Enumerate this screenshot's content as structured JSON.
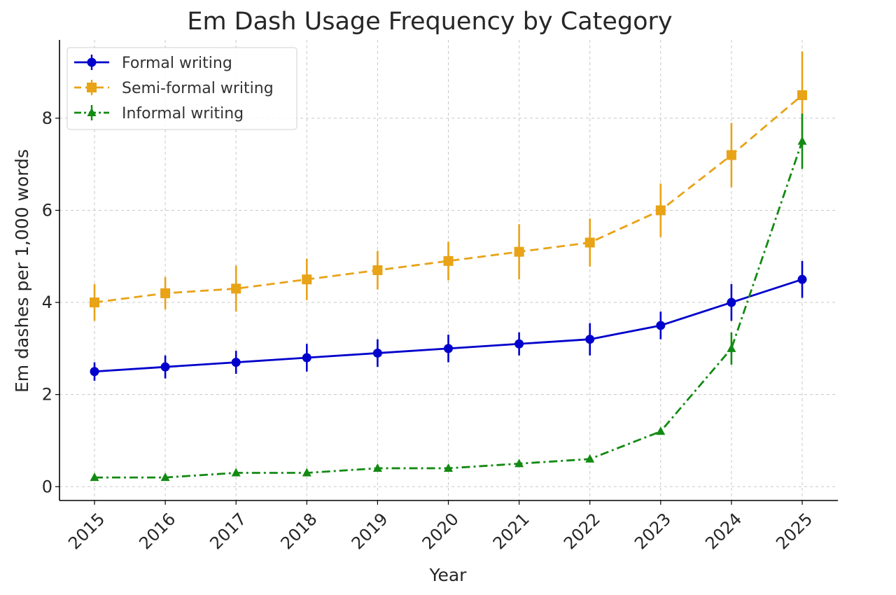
{
  "chart_data": {
    "type": "line",
    "title": "Em Dash Usage Frequency by Category",
    "xlabel": "Year",
    "ylabel": "Em dashes per 1,000 words",
    "x": [
      "2015",
      "2016",
      "2017",
      "2018",
      "2019",
      "2020",
      "2021",
      "2022",
      "2023",
      "2024",
      "2025"
    ],
    "ylim": [
      -0.3,
      9.7
    ],
    "yticks": [
      "0",
      "2",
      "4",
      "6",
      "8"
    ],
    "grid": true,
    "legend_position": "top-left",
    "series": [
      {
        "name": "Formal writing",
        "color": "#0000cc",
        "line_style": "solid",
        "marker": "circle",
        "values": [
          2.5,
          2.6,
          2.7,
          2.8,
          2.9,
          3.0,
          3.1,
          3.2,
          3.5,
          4.0,
          4.5
        ],
        "errors": [
          0.2,
          0.25,
          0.25,
          0.3,
          0.3,
          0.3,
          0.25,
          0.35,
          0.3,
          0.4,
          0.4
        ]
      },
      {
        "name": "Semi-formal writing",
        "color": "#e8a317",
        "line_style": "dashed",
        "marker": "square",
        "values": [
          4.0,
          4.2,
          4.3,
          4.5,
          4.7,
          4.9,
          5.1,
          5.3,
          6.0,
          7.2,
          8.5
        ],
        "errors": [
          0.4,
          0.35,
          0.5,
          0.45,
          0.42,
          0.42,
          0.6,
          0.52,
          0.58,
          0.7,
          0.95
        ]
      },
      {
        "name": "Informal writing",
        "color": "#138a13",
        "line_style": "dashdot",
        "marker": "triangle",
        "values": [
          0.2,
          0.2,
          0.3,
          0.3,
          0.4,
          0.4,
          0.5,
          0.6,
          1.2,
          3.0,
          7.5
        ],
        "errors": [
          0.0,
          0.0,
          0.0,
          0.0,
          0.0,
          0.0,
          0.0,
          0.0,
          0.0,
          0.35,
          0.6
        ]
      }
    ]
  }
}
